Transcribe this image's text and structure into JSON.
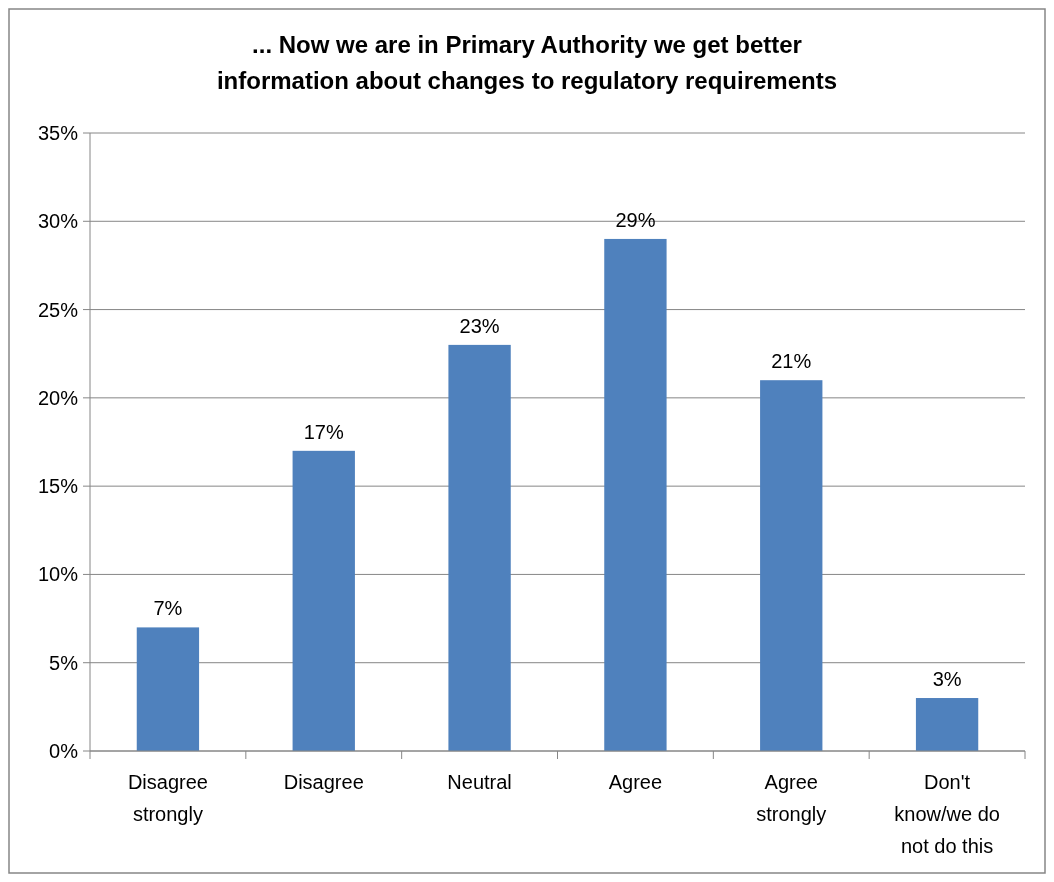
{
  "chart_data": {
    "type": "bar",
    "title": "...  Now we are in Primary Authority we get better information about changes to regulatory requirements",
    "categories": [
      "Disagree strongly",
      "Disagree",
      "Neutral",
      "Agree",
      "Agree strongly",
      "Don't know/we do not do this"
    ],
    "values": [
      7,
      17,
      23,
      29,
      21,
      3
    ],
    "value_labels": [
      "7%",
      "17%",
      "23%",
      "29%",
      "21%",
      "3%"
    ],
    "color": "#4f81bd",
    "ylim": [
      0,
      35
    ],
    "yticks": [
      {
        "value": 0,
        "label": "0%"
      },
      {
        "value": 5,
        "label": "5%"
      },
      {
        "value": 10,
        "label": "10%"
      },
      {
        "value": 15,
        "label": "15%"
      },
      {
        "value": 20,
        "label": "20%"
      },
      {
        "value": 25,
        "label": "25%"
      },
      {
        "value": 30,
        "label": "30%"
      },
      {
        "value": 35,
        "label": "35%"
      }
    ],
    "grid": true
  }
}
